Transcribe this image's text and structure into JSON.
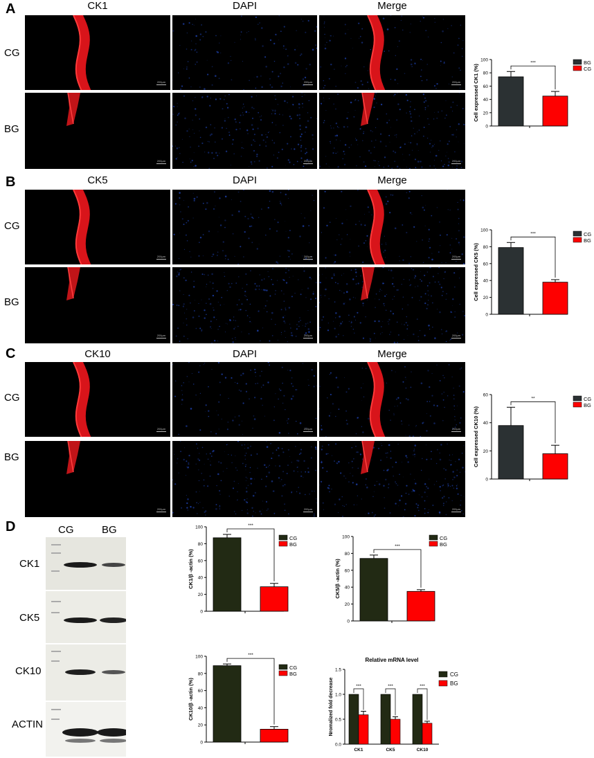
{
  "panels": {
    "A": {
      "letter": "A",
      "columns": [
        "CK1",
        "DAPI",
        "Merge"
      ],
      "rows": [
        "CG",
        "BG"
      ],
      "scale": "200μm",
      "chart": {
        "type": "bar",
        "ylabel": "Cell expressed CK1 (%)",
        "yticks": [
          "0",
          "20",
          "40",
          "60",
          "80",
          "100"
        ],
        "ylim": [
          0,
          100
        ],
        "categories": [
          "BG",
          "CG"
        ],
        "values": [
          74,
          45
        ],
        "errors": [
          8,
          7
        ],
        "sig": "***",
        "legend": [
          "BG",
          "CG"
        ],
        "colors": [
          "#2b3133",
          "#fe0000"
        ]
      }
    },
    "B": {
      "letter": "B",
      "columns": [
        "CK5",
        "DAPI",
        "Merge"
      ],
      "rows": [
        "CG",
        "BG"
      ],
      "scale": "200μm",
      "chart": {
        "type": "bar",
        "ylabel": "Cell expressed CK5 (%)",
        "yticks": [
          "0",
          "20",
          "40",
          "60",
          "80",
          "100"
        ],
        "ylim": [
          0,
          100
        ],
        "categories": [
          "CG",
          "BG"
        ],
        "values": [
          79,
          38
        ],
        "errors": [
          6,
          3
        ],
        "sig": "***",
        "legend": [
          "CG",
          "BG"
        ],
        "colors": [
          "#2b3133",
          "#fe0000"
        ]
      }
    },
    "C": {
      "letter": "C",
      "columns": [
        "CK10",
        "DAPI",
        "Merge"
      ],
      "rows": [
        "CG",
        "BG"
      ],
      "scale": "200μm",
      "chart": {
        "type": "bar",
        "ylabel": "Cell expressed CK10 (%)",
        "yticks": [
          "0",
          "20",
          "40",
          "60"
        ],
        "ylim": [
          0,
          60
        ],
        "categories": [
          "CG",
          "BG"
        ],
        "values": [
          38,
          18
        ],
        "errors": [
          13,
          6
        ],
        "sig": "**",
        "legend": [
          "CG",
          "BG"
        ],
        "colors": [
          "#2b3133",
          "#fe0000"
        ]
      }
    },
    "D": {
      "letter": "D",
      "wb_columns": [
        "CG",
        "BG"
      ],
      "wb_rows": [
        "CK1",
        "CK5",
        "CK10",
        "ACTIN"
      ],
      "charts": [
        {
          "type": "bar",
          "ylabel": "CK1/β -actin (%)",
          "yticks": [
            "0",
            "20",
            "40",
            "60",
            "80",
            "100"
          ],
          "ylim": [
            0,
            100
          ],
          "categories": [
            "CG",
            "BG"
          ],
          "values": [
            87,
            29
          ],
          "errors": [
            4,
            4
          ],
          "sig": "***",
          "legend": [
            "CG",
            "BG"
          ],
          "colors": [
            "#222a14",
            "#fe0000"
          ]
        },
        {
          "type": "bar",
          "ylabel": "CK5/β -actin (%)",
          "yticks": [
            "0",
            "20",
            "40",
            "60",
            "80",
            "100"
          ],
          "ylim": [
            0,
            100
          ],
          "categories": [
            "CG",
            "BG"
          ],
          "values": [
            74,
            35
          ],
          "errors": [
            4,
            2
          ],
          "sig": "***",
          "legend": [
            "CG",
            "BG"
          ],
          "colors": [
            "#222a14",
            "#fe0000"
          ]
        },
        {
          "type": "bar",
          "ylabel": "CK10/β -actin (%)",
          "yticks": [
            "0",
            "20",
            "40",
            "60",
            "80",
            "100"
          ],
          "ylim": [
            0,
            100
          ],
          "categories": [
            "CG",
            "BG"
          ],
          "values": [
            89,
            15
          ],
          "errors": [
            2,
            3
          ],
          "sig": "***",
          "legend": [
            "CG",
            "BG"
          ],
          "colors": [
            "#222a14",
            "#fe0000"
          ]
        },
        {
          "type": "bar",
          "title": "Relative mRNA level",
          "ylabel": "Nromalized fold decrease",
          "yticks": [
            "0.0",
            "0.5",
            "1.0",
            "1.5"
          ],
          "ylim": [
            0,
            1.5
          ],
          "categories": [
            "CK1",
            "CK5",
            "CK10"
          ],
          "series": [
            {
              "name": "CG",
              "values": [
                1.0,
                1.0,
                1.0
              ]
            },
            {
              "name": "BG",
              "values": [
                0.59,
                0.5,
                0.42
              ]
            }
          ],
          "errors": [
            0.07,
            0.05,
            0.04
          ],
          "sig": [
            "***",
            "***",
            "***"
          ],
          "legend": [
            "CG",
            "BG"
          ],
          "colors": [
            "#222a14",
            "#fe0000"
          ]
        }
      ]
    }
  }
}
